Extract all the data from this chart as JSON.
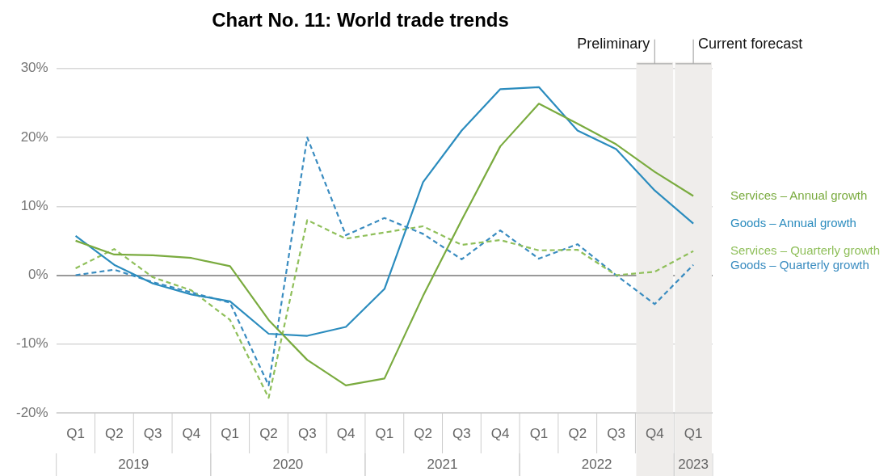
{
  "chart_data": {
    "type": "line",
    "title": "Chart No. 11: World trade trends",
    "categories": [
      "Q1",
      "Q2",
      "Q3",
      "Q4",
      "Q1",
      "Q2",
      "Q3",
      "Q4",
      "Q1",
      "Q2",
      "Q3",
      "Q4",
      "Q1",
      "Q2",
      "Q3",
      "Q4",
      "Q1"
    ],
    "annotations": [
      "2019",
      "2020",
      "2021",
      "2022",
      "2023",
      "Preliminary",
      "Current forecast"
    ],
    "series": [
      {
        "name": "Services – Annual growth",
        "color": "#7aab3f",
        "line_style": "solid",
        "values": [
          5,
          3,
          2.9,
          2.5,
          1.3,
          -6.5,
          -12.3,
          -16,
          -15,
          -3,
          8,
          18.7,
          24.9,
          22,
          19,
          15,
          11.5
        ]
      },
      {
        "name": "Goods – Annual growth",
        "color": "#2b8cbe",
        "line_style": "solid",
        "values": [
          5.7,
          1.5,
          -1.2,
          -2.8,
          -3.8,
          -8.5,
          -8.8,
          -7.5,
          -2,
          13.5,
          21,
          27,
          27.3,
          21,
          18.3,
          12.3,
          7.5
        ]
      },
      {
        "name": "Services – Quarterly growth",
        "color": "#8fbf5a",
        "line_style": "dashed",
        "values": [
          1,
          3.8,
          -0.3,
          -2.2,
          -6.5,
          -17.8,
          8,
          5.3,
          6.2,
          7.1,
          4.4,
          5.1,
          3.6,
          3.7,
          0,
          0.5,
          3.5
        ]
      },
      {
        "name": "Goods – Quarterly growth",
        "color": "#3a8cc0",
        "line_style": "dashed",
        "values": [
          0,
          0.8,
          -1,
          -2.5,
          -4,
          -16,
          20,
          5.8,
          8.3,
          6,
          2.3,
          6.5,
          2.4,
          4.5,
          0,
          -4.2,
          1.5
        ]
      }
    ],
    "ylim": [
      -20,
      30
    ],
    "yticks": [
      {
        "value": -20,
        "label": "-20%"
      },
      {
        "value": -10,
        "label": "-10%"
      },
      {
        "value": 0,
        "label": "0%"
      },
      {
        "value": 10,
        "label": "10%"
      },
      {
        "value": 20,
        "label": "20%"
      },
      {
        "value": 30,
        "label": "30%"
      }
    ],
    "grid": "y",
    "legend": false,
    "marker": "none"
  }
}
